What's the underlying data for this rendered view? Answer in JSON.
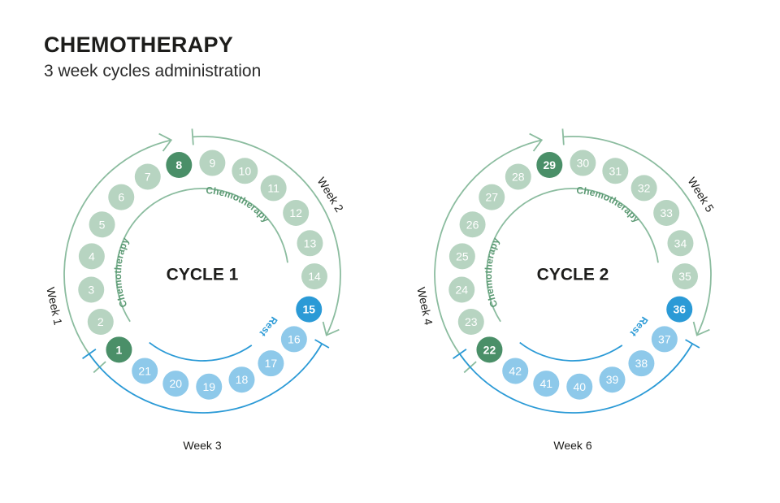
{
  "title": "CHEMOTHERAPY",
  "subtitle": "3 week cycles administration",
  "colors": {
    "chemo_day": "#b7d4c1",
    "chemo_start": "#4a8f68",
    "chemo_text": "#5c9a74",
    "chemo_line": "#8bbc9f",
    "rest_day": "#8ec9ea",
    "rest_start": "#2b9ad6",
    "rest_text": "#2b9ad6",
    "rest_line": "#2b9ad6",
    "center_text": "#1d1d1b"
  },
  "cycles": [
    {
      "name": "CYCLE 1",
      "chemo_label": "Chemotherapy",
      "rest_label": "Rest",
      "weeks": [
        "Week 1",
        "Week 2",
        "Week 3"
      ],
      "days": [
        "1",
        "2",
        "3",
        "4",
        "5",
        "6",
        "7",
        "8",
        "9",
        "10",
        "11",
        "12",
        "13",
        "14",
        "15",
        "16",
        "17",
        "18",
        "19",
        "20",
        "21"
      ]
    },
    {
      "name": "CYCLE 2",
      "chemo_label": "Chemotherapy",
      "rest_label": "Rest",
      "weeks": [
        "Week 4",
        "Week 5",
        "Week 6"
      ],
      "days": [
        "22",
        "23",
        "24",
        "25",
        "26",
        "27",
        "28",
        "29",
        "30",
        "31",
        "32",
        "33",
        "34",
        "35",
        "36",
        "37",
        "38",
        "39",
        "40",
        "41",
        "42"
      ]
    }
  ]
}
